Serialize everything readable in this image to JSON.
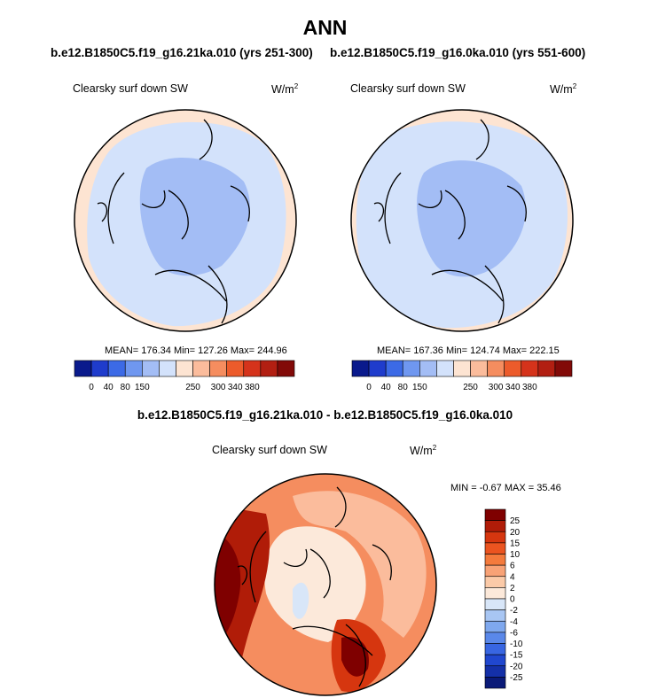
{
  "page": {
    "title": "ANN"
  },
  "panels": [
    {
      "case_title": "b.e12.B1850C5.f19_g16.21ka.010 (yrs 251-300)",
      "left_label": "Clearsky surf down SW",
      "units_base": "W/m",
      "units_exp": "2",
      "stats": "MEAN= 176.34  Min= 127.26  Max= 244.96"
    },
    {
      "case_title": "b.e12.B1850C5.f19_g16.0ka.010 (yrs 551-600)",
      "left_label": "Clearsky surf down SW",
      "units_base": "W/m",
      "units_exp": "2",
      "stats": "MEAN= 167.36  Min= 124.74  Max= 222.15"
    }
  ],
  "difference": {
    "title": "b.e12.B1850C5.f19_g16.21ka.010 - b.e12.B1850C5.f19_g16.0ka.010",
    "left_label": "Clearsky surf down SW",
    "units_base": "W/m",
    "units_exp": "2",
    "minmax": "MIN =  -0.67 MAX =  35.46"
  },
  "chart_data": [
    {
      "type": "heatmap",
      "projection": "north-polar-stereographic",
      "variable": "Clearsky surf down SW",
      "units": "W/m2",
      "mean": 176.34,
      "min": 127.26,
      "max": 244.96,
      "colorbar": {
        "orientation": "horizontal",
        "tick_labels": [
          "0",
          "40",
          "80",
          "150",
          "250",
          "300",
          "340",
          "380"
        ],
        "colors": [
          "#0a1a8c",
          "#1f3ccc",
          "#3c6ae6",
          "#6f97f0",
          "#a3bdf5",
          "#d3e2fb",
          "#fde4d2",
          "#fbbc9c",
          "#f58d5f",
          "#ec5b2b",
          "#d5331b",
          "#b21f12",
          "#820a08"
        ]
      }
    },
    {
      "type": "heatmap",
      "projection": "north-polar-stereographic",
      "variable": "Clearsky surf down SW",
      "units": "W/m2",
      "mean": 167.36,
      "min": 124.74,
      "max": 222.15,
      "colorbar": {
        "orientation": "horizontal",
        "tick_labels": [
          "0",
          "40",
          "80",
          "150",
          "250",
          "300",
          "340",
          "380"
        ],
        "colors": [
          "#0a1a8c",
          "#1f3ccc",
          "#3c6ae6",
          "#6f97f0",
          "#a3bdf5",
          "#d3e2fb",
          "#fde4d2",
          "#fbbc9c",
          "#f58d5f",
          "#ec5b2b",
          "#d5331b",
          "#b21f12",
          "#820a08"
        ]
      }
    },
    {
      "type": "heatmap",
      "projection": "north-polar-stereographic",
      "variable": "Clearsky surf down SW (difference)",
      "units": "W/m2",
      "min": -0.67,
      "max": 35.46,
      "colorbar": {
        "orientation": "vertical",
        "tick_labels": [
          "25",
          "20",
          "15",
          "10",
          "6",
          "4",
          "2",
          "0",
          "-2",
          "-4",
          "-6",
          "-10",
          "-15",
          "-20",
          "-25"
        ],
        "colors": [
          "#7f0000",
          "#b01c08",
          "#d6360f",
          "#eb5420",
          "#f47a3c",
          "#f8a276",
          "#fbcaa8",
          "#fce9da",
          "#d8e6f8",
          "#a8c6f3",
          "#7fa8ee",
          "#5a88e9",
          "#3866e2",
          "#2047cf",
          "#1430a8",
          "#0a1a78"
        ]
      }
    }
  ]
}
